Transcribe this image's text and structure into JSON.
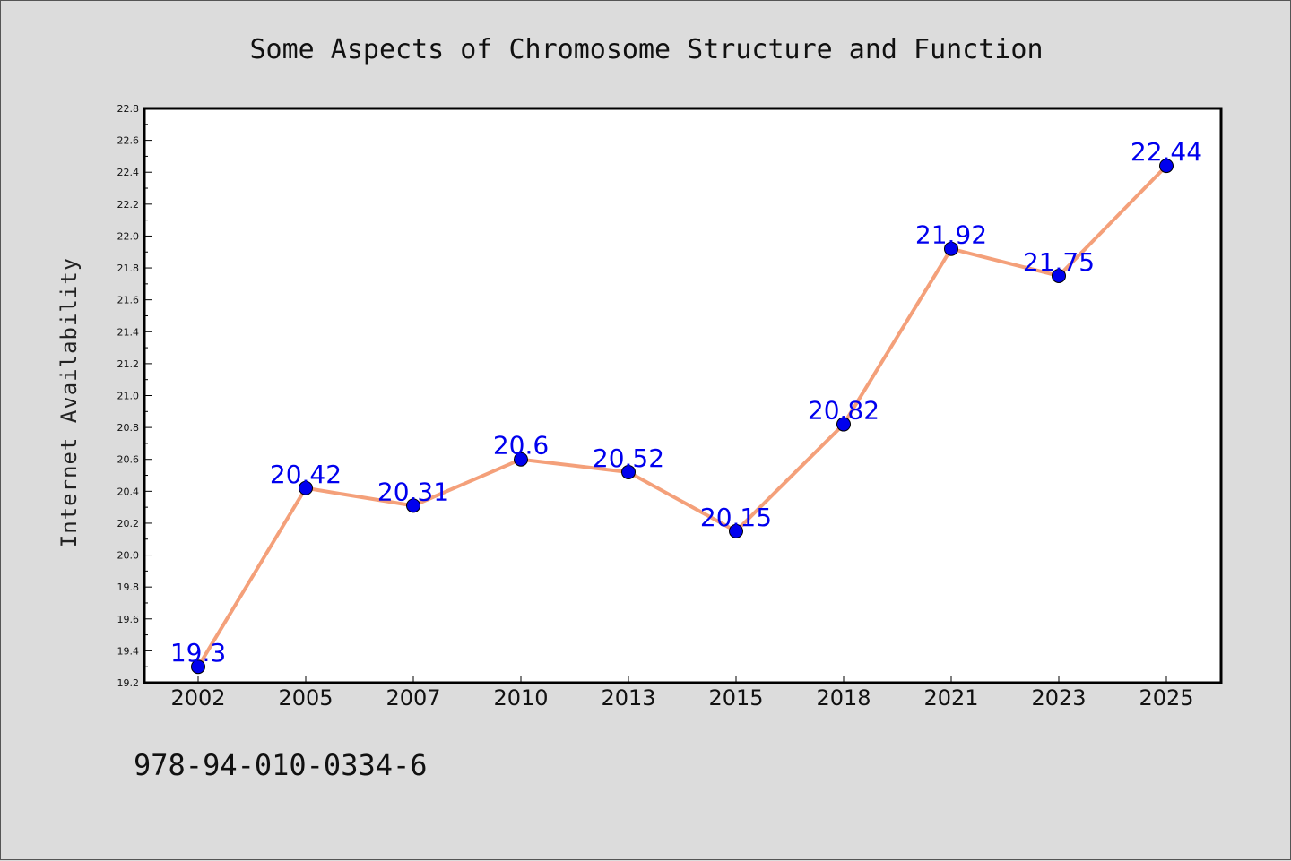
{
  "chart_data": {
    "type": "line",
    "title": "Some Aspects of Chromosome Structure and Function",
    "xlabel": "",
    "ylabel": "Internet Availability",
    "categories": [
      "2002",
      "2005",
      "2007",
      "2010",
      "2013",
      "2015",
      "2018",
      "2021",
      "2023",
      "2025"
    ],
    "series": [
      {
        "values": [
          19.3,
          20.42,
          20.31,
          20.6,
          20.52,
          20.15,
          20.82,
          21.92,
          21.75,
          22.44
        ],
        "data_labels": [
          "19.3",
          "20.42",
          "20.31",
          "20.6",
          "20.52",
          "20.15",
          "20.82",
          "21.92",
          "21.75",
          "22.44"
        ]
      }
    ],
    "ylim": [
      19.2,
      22.8
    ],
    "yticks": [
      "19.2",
      "19.4",
      "19.6",
      "19.8",
      "20.0",
      "20.2",
      "20.4",
      "20.6",
      "20.8",
      "21.0",
      "21.2",
      "21.4",
      "21.6",
      "21.8",
      "22.0",
      "22.2",
      "22.4",
      "22.6",
      "22.8"
    ],
    "grid": false,
    "legend": "none",
    "colors": {
      "line": "#f4a07a",
      "marker": "#0000ee",
      "data_label": "#0000ee",
      "plot_background": "#ffffff",
      "figure_background": "#dcdcdc"
    }
  },
  "footer_text": "978-94-010-0334-6"
}
